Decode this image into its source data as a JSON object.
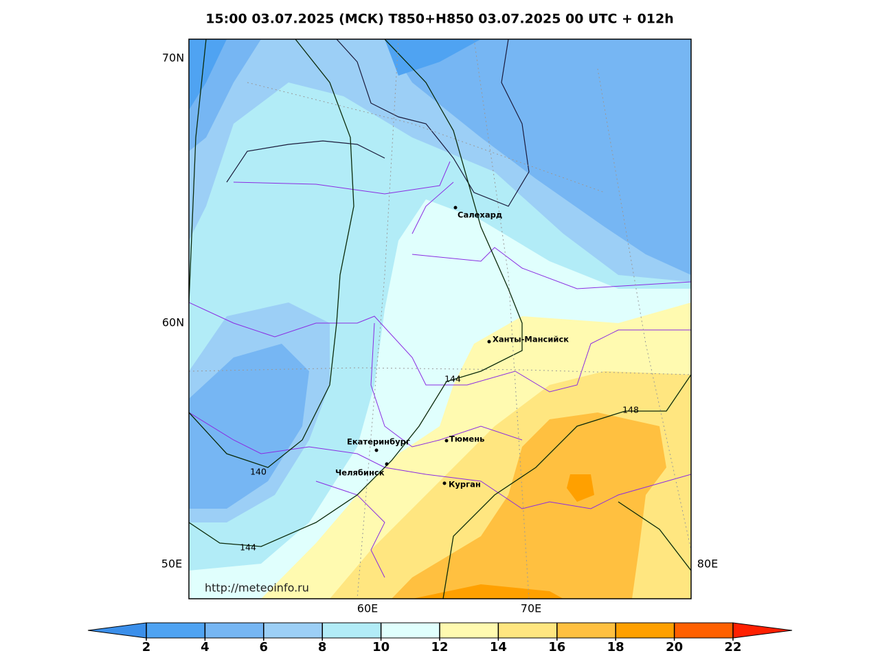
{
  "title": "15:00 03.07.2025 (МСК) T850+H850 03.07.2025 00 UTC + 012h",
  "map": {
    "lat_labels": [
      "70N",
      "60N",
      "50E"
    ],
    "lon_labels": [
      "60E",
      "70E",
      "80E"
    ],
    "cities": [
      "Салехард",
      "Ханты-Мансийск",
      "Екатеринбург",
      "Тюмень",
      "Челябинск",
      "Курган"
    ],
    "contour_labels": [
      "144",
      "148",
      "140",
      "144"
    ],
    "watermark": "http://meteoinfo.ru"
  },
  "colorbar": {
    "ticks": [
      2,
      4,
      6,
      8,
      10,
      12,
      14,
      16,
      18,
      20,
      22
    ],
    "colors": [
      "#4fa3f2",
      "#76b6f3",
      "#9ccff6",
      "#b2ecf7",
      "#e0fffd",
      "#fffab0",
      "#ffe680",
      "#ffc040",
      "#ffa000",
      "#ff6000"
    ],
    "under_color": "#3b8fea",
    "over_color": "#ff2000"
  }
}
